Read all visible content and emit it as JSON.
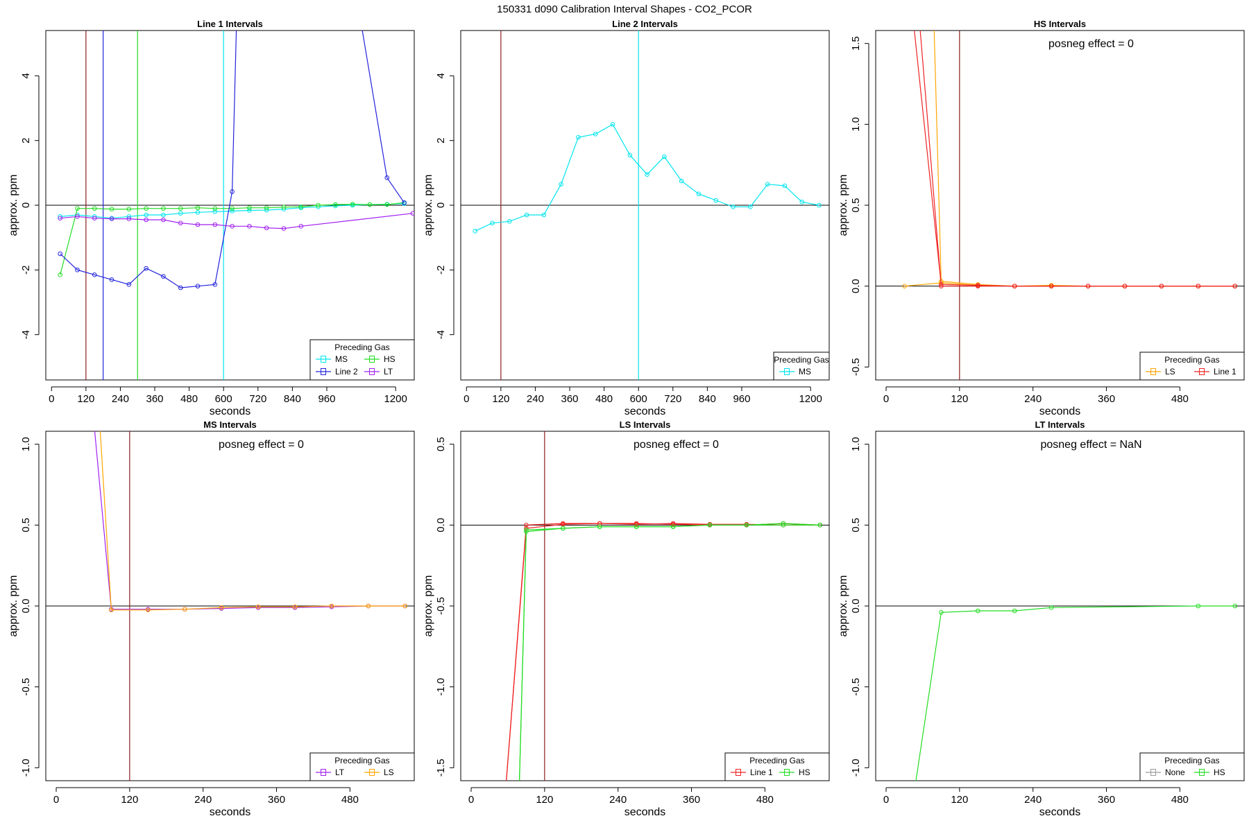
{
  "figure_title": "150331  d090   Calibration Interval Shapes - CO2_PCOR",
  "colors": {
    "MS": "#00e5ee",
    "HS": "#22dd22",
    "LS": "#ffa500",
    "Line 1": "#ee2222",
    "Line 2": "#2222dd",
    "LT": "#a020f0",
    "None": "#999999",
    "marker_line": "#8b1a1a",
    "zero_line": "#000000"
  },
  "chart_data": [
    {
      "type": "line",
      "title": "Line 1 Intervals",
      "xlabel": "seconds",
      "ylabel": "approx. ppm",
      "xlim": [
        -20,
        1265
      ],
      "ylim": [
        -5.4,
        5.4
      ],
      "xticks": [
        0,
        120,
        240,
        360,
        480,
        600,
        720,
        840,
        960,
        1200
      ],
      "yticks": [
        -4,
        -2,
        0,
        2,
        4
      ],
      "annotation": "",
      "legend": {
        "title": "Preceding Gas",
        "position": "bottom-right",
        "columns": 2,
        "entries": [
          "MS",
          "HS",
          "Line 2",
          "LT"
        ]
      },
      "vlines": [
        {
          "x": 120,
          "color": "marker_line"
        },
        {
          "x": 180,
          "color": "Line 2"
        },
        {
          "x": 300,
          "color": "HS"
        },
        {
          "x": 600,
          "color": "MS"
        }
      ],
      "series": [
        {
          "name": "MS",
          "x": [
            30,
            90,
            150,
            210,
            270,
            330,
            390,
            450,
            510,
            570,
            630,
            690,
            750,
            810,
            870,
            930,
            990,
            1050,
            1110,
            1170,
            1230
          ],
          "y": [
            -0.35,
            -0.3,
            -0.35,
            -0.4,
            -0.35,
            -0.3,
            -0.3,
            -0.25,
            -0.22,
            -0.2,
            -0.18,
            -0.16,
            -0.15,
            -0.12,
            -0.08,
            -0.05,
            -0.02,
            0,
            0.02,
            0.03,
            0.05
          ]
        },
        {
          "name": "HS",
          "x": [
            30,
            90,
            150,
            210,
            270,
            330,
            390,
            450,
            510,
            570,
            630,
            690,
            750,
            810,
            870,
            930,
            990,
            1050,
            1110,
            1170,
            1230
          ],
          "y": [
            -2.15,
            -0.1,
            -0.1,
            -0.12,
            -0.12,
            -0.1,
            -0.1,
            -0.1,
            -0.08,
            -0.1,
            -0.1,
            -0.08,
            -0.08,
            -0.06,
            -0.05,
            0,
            0.02,
            0.03,
            0.02,
            0.02,
            0.08
          ]
        },
        {
          "name": "Line 2",
          "x": [
            30,
            90,
            150,
            210,
            270,
            330,
            390,
            450,
            510,
            570,
            630,
            645,
            1080,
            1170,
            1230
          ],
          "y": [
            -1.5,
            -2.0,
            -2.15,
            -2.3,
            -2.45,
            -1.95,
            -2.2,
            -2.55,
            -2.5,
            -2.45,
            0.42,
            5.6,
            5.6,
            0.85,
            0.08
          ]
        },
        {
          "name": "LT",
          "x": [
            30,
            90,
            150,
            210,
            270,
            330,
            390,
            450,
            510,
            570,
            630,
            690,
            750,
            810,
            870,
            1260
          ],
          "y": [
            -0.4,
            -0.35,
            -0.4,
            -0.42,
            -0.42,
            -0.45,
            -0.45,
            -0.55,
            -0.6,
            -0.6,
            -0.65,
            -0.65,
            -0.7,
            -0.72,
            -0.65,
            -0.25
          ]
        }
      ]
    },
    {
      "type": "line",
      "title": "Line 2 Intervals",
      "xlabel": "seconds",
      "ylabel": "approx. ppm",
      "xlim": [
        -20,
        1265
      ],
      "ylim": [
        -5.4,
        5.4
      ],
      "xticks": [
        0,
        120,
        240,
        360,
        480,
        600,
        720,
        840,
        960,
        1200
      ],
      "yticks": [
        -4,
        -2,
        0,
        2,
        4
      ],
      "annotation": "",
      "legend": {
        "title": "Preceding Gas",
        "position": "bottom-right",
        "columns": 1,
        "entries": [
          "MS"
        ]
      },
      "vlines": [
        {
          "x": 120,
          "color": "marker_line"
        },
        {
          "x": 600,
          "color": "MS"
        }
      ],
      "series": [
        {
          "name": "MS",
          "x": [
            30,
            90,
            150,
            210,
            270,
            330,
            390,
            450,
            510,
            570,
            630,
            690,
            750,
            810,
            870,
            930,
            990,
            1050,
            1110,
            1170,
            1230
          ],
          "y": [
            -0.8,
            -0.55,
            -0.5,
            -0.3,
            -0.3,
            0.65,
            2.1,
            2.2,
            2.5,
            1.55,
            0.95,
            1.5,
            0.75,
            0.35,
            0.15,
            -0.05,
            -0.05,
            0.65,
            0.6,
            0.1,
            0
          ]
        }
      ]
    },
    {
      "type": "line",
      "title": "HS Intervals",
      "xlabel": "seconds",
      "ylabel": "approx. ppm",
      "xlim": [
        -17,
        585
      ],
      "ylim": [
        -0.58,
        1.58
      ],
      "xticks": [
        0,
        120,
        240,
        360,
        480
      ],
      "yticks": [
        -0.5,
        0.0,
        0.5,
        1.0,
        1.5
      ],
      "annotation": "posneg effect = 0",
      "legend": {
        "title": "Preceding Gas",
        "position": "bottom-right",
        "columns": 2,
        "entries": [
          "LS",
          "Line 1"
        ]
      },
      "vlines": [
        {
          "x": 120,
          "color": "marker_line"
        }
      ],
      "series": [
        {
          "name": "LS",
          "x": [
            30,
            90,
            150,
            210,
            270,
            330,
            390,
            450,
            510,
            570
          ],
          "y": [
            0,
            0.02,
            0.005,
            0,
            0,
            0,
            0,
            0,
            0,
            0
          ]
        },
        {
          "name": "LS",
          "x": [
            78,
            90,
            150,
            210,
            270,
            330,
            390,
            450,
            510,
            570
          ],
          "y": [
            1.65,
            0.03,
            0.01,
            0,
            0.005,
            0,
            0,
            0,
            0,
            0
          ]
        },
        {
          "name": "Line 1",
          "x": [
            40,
            90,
            150,
            210,
            270,
            330,
            390,
            450,
            510,
            570
          ],
          "y": [
            1.8,
            0.01,
            0.005,
            0,
            0,
            0,
            0,
            0,
            0,
            0
          ]
        },
        {
          "name": "Line 1",
          "x": [
            52,
            90,
            150,
            210,
            270,
            330,
            390,
            450,
            510,
            570
          ],
          "y": [
            1.75,
            0,
            0,
            0,
            0,
            0,
            0,
            0,
            0,
            0
          ]
        }
      ]
    },
    {
      "type": "line",
      "title": "MS Intervals",
      "xlabel": "seconds",
      "ylabel": "approx. ppm",
      "xlim": [
        -17,
        585
      ],
      "ylim": [
        -1.08,
        1.08
      ],
      "xticks": [
        0,
        120,
        240,
        360,
        480
      ],
      "yticks": [
        -1.0,
        -0.5,
        0.0,
        0.5,
        1.0
      ],
      "annotation": "posneg effect = 0",
      "legend": {
        "title": "Preceding Gas",
        "position": "bottom-right",
        "columns": 2,
        "entries": [
          "LT",
          "LS"
        ]
      },
      "vlines": [
        {
          "x": 120,
          "color": "marker_line"
        }
      ],
      "series": [
        {
          "name": "LT",
          "x": [
            60,
            90,
            150,
            210,
            270,
            330,
            390,
            450,
            510,
            570
          ],
          "y": [
            1.2,
            -0.02,
            -0.02,
            -0.02,
            -0.015,
            -0.01,
            -0.01,
            -0.005,
            0,
            0
          ]
        },
        {
          "name": "LS",
          "x": [
            70,
            90,
            150,
            210,
            270,
            330,
            390,
            450,
            510,
            570
          ],
          "y": [
            1.2,
            -0.025,
            -0.025,
            -0.02,
            -0.01,
            -0.005,
            -0.005,
            0,
            0,
            0
          ]
        }
      ]
    },
    {
      "type": "line",
      "title": "LS Intervals",
      "xlabel": "seconds",
      "ylabel": "approx. ppm",
      "xlim": [
        -17,
        585
      ],
      "ylim": [
        -1.58,
        0.58
      ],
      "xticks": [
        0,
        120,
        240,
        360,
        480
      ],
      "yticks": [
        -1.5,
        -1.0,
        -0.5,
        0.0,
        0.5
      ],
      "annotation": "posneg effect = 0",
      "legend": {
        "title": "Preceding Gas",
        "position": "bottom-right",
        "columns": 2,
        "entries": [
          "Line 1",
          "HS"
        ]
      },
      "vlines": [
        {
          "x": 120,
          "color": "marker_line"
        }
      ],
      "series": [
        {
          "name": "Line 1",
          "x": [
            55,
            90,
            150,
            210,
            270,
            330,
            390,
            450,
            510,
            570
          ],
          "y": [
            -1.7,
            -0.02,
            0.005,
            0.01,
            0.01,
            0.005,
            0,
            0,
            0.01,
            0
          ]
        },
        {
          "name": "Line 1",
          "x": [
            55,
            90,
            150,
            210,
            270,
            330,
            390,
            450,
            510,
            570
          ],
          "y": [
            -1.7,
            0,
            0.01,
            0.01,
            0.005,
            0.01,
            0.005,
            0.005,
            0,
            0
          ]
        },
        {
          "name": "HS",
          "x": [
            78,
            90,
            150,
            210,
            270,
            330,
            390,
            450,
            510,
            570
          ],
          "y": [
            -1.7,
            -0.03,
            -0.02,
            -0.01,
            -0.01,
            -0.01,
            0,
            0,
            0.01,
            0
          ]
        },
        {
          "name": "HS",
          "x": [
            78,
            90,
            150,
            210,
            270,
            330,
            390,
            450,
            510,
            570
          ],
          "y": [
            -1.7,
            -0.04,
            -0.02,
            -0.01,
            -0.01,
            -0.01,
            0,
            0,
            0,
            0
          ]
        }
      ]
    },
    {
      "type": "line",
      "title": "LT Intervals",
      "xlabel": "seconds",
      "ylabel": "approx. ppm",
      "xlim": [
        -17,
        585
      ],
      "ylim": [
        -1.08,
        1.08
      ],
      "xticks": [
        0,
        120,
        240,
        360,
        480
      ],
      "yticks": [
        -1.0,
        -0.5,
        0.0,
        0.5,
        1.0
      ],
      "annotation": "posneg effect = NaN",
      "legend": {
        "title": "Preceding Gas",
        "position": "bottom-right",
        "columns": 2,
        "entries": [
          "None",
          "HS"
        ]
      },
      "vlines": [],
      "series": [
        {
          "name": "HS",
          "x": [
            48,
            90,
            150,
            210,
            270,
            510,
            570
          ],
          "y": [
            -1.1,
            -0.04,
            -0.03,
            -0.03,
            -0.01,
            0,
            0
          ]
        }
      ]
    }
  ]
}
